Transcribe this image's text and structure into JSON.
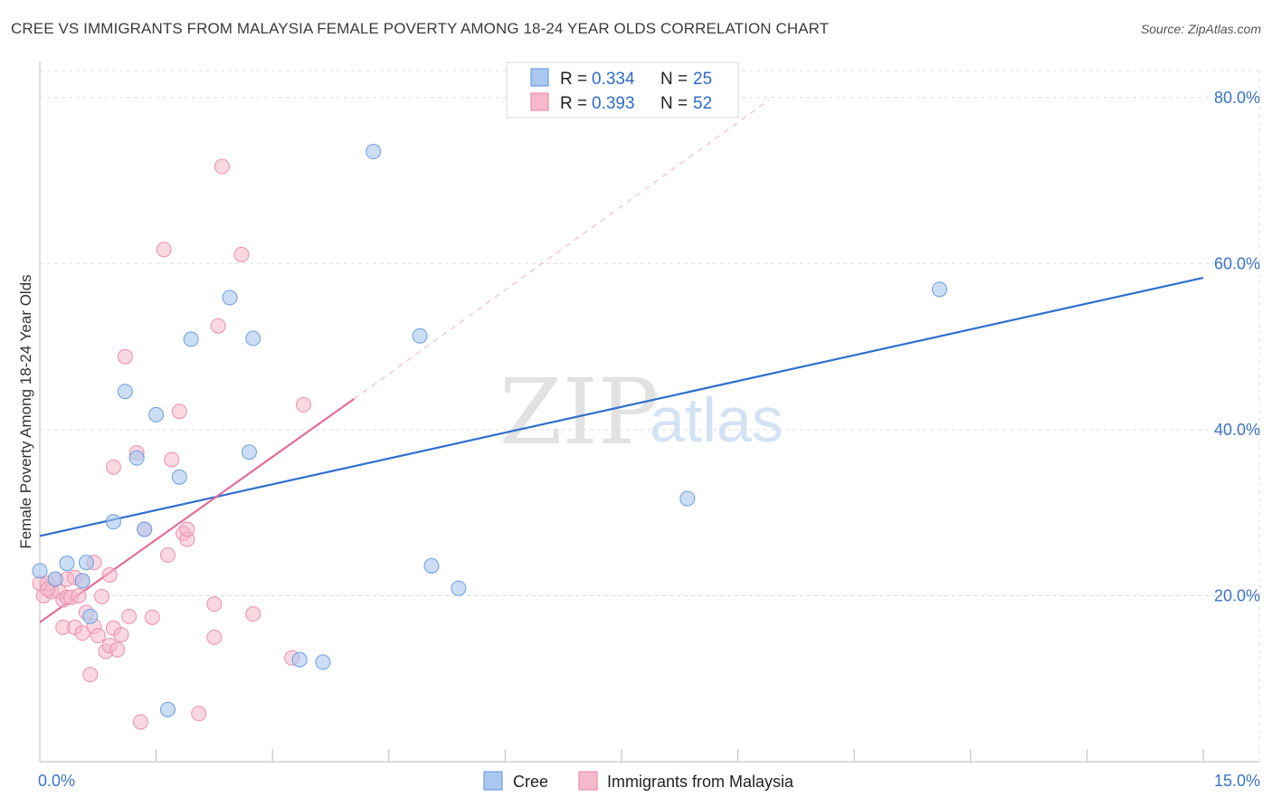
{
  "title": "CREE VS IMMIGRANTS FROM MALAYSIA FEMALE POVERTY AMONG 18-24 YEAR OLDS CORRELATION CHART",
  "source": "Source: ZipAtlas.com",
  "watermark": {
    "zip": "ZIP",
    "atlas": "atlas"
  },
  "colors": {
    "cree_fill": "#a9c8f0",
    "cree_stroke": "#6d9ee0",
    "cree_line": "#2f6fce",
    "malaysia_fill": "#f6b8cb",
    "malaysia_stroke": "#ec8fae",
    "malaysia_line": "#e46a96",
    "axis_label": "#3a74c7",
    "grid": "#dddddd"
  },
  "legend": {
    "r_label": "R =",
    "n_label": "N =",
    "cree": {
      "r": "0.334",
      "n": "25"
    },
    "malaysia": {
      "r": "0.393",
      "n": "52"
    }
  },
  "bottom_legend": {
    "cree": "Cree",
    "malaysia": "Immigrants from Malaysia"
  },
  "chart_data": {
    "type": "scatter",
    "title": "CREE VS IMMIGRANTS FROM MALAYSIA FEMALE POVERTY AMONG 18-24 YEAR OLDS CORRELATION CHART",
    "xlabel": "",
    "ylabel": "Female Poverty Among 18-24 Year Olds",
    "xlim": [
      0,
      15
    ],
    "ylim": [
      0,
      85
    ],
    "x_tick_labels": [
      "0.0%",
      "15.0%"
    ],
    "y_ticks": [
      20,
      40,
      60,
      80
    ],
    "y_tick_labels": [
      "20.0%",
      "40.0%",
      "60.0%",
      "80.0%"
    ],
    "grid": true,
    "series": [
      {
        "name": "Cree",
        "points": [
          [
            0.0,
            23.0
          ],
          [
            0.2,
            22.0
          ],
          [
            0.35,
            23.9
          ],
          [
            0.55,
            21.8
          ],
          [
            0.6,
            24.0
          ],
          [
            0.65,
            17.5
          ],
          [
            0.95,
            28.9
          ],
          [
            1.1,
            44.6
          ],
          [
            1.25,
            36.6
          ],
          [
            1.35,
            28.0
          ],
          [
            1.5,
            41.8
          ],
          [
            1.65,
            6.3
          ],
          [
            1.8,
            34.3
          ],
          [
            1.95,
            50.9
          ],
          [
            2.45,
            55.9
          ],
          [
            2.7,
            37.3
          ],
          [
            2.75,
            51.0
          ],
          [
            3.35,
            12.3
          ],
          [
            3.65,
            12.0
          ],
          [
            4.3,
            73.5
          ],
          [
            4.9,
            51.3
          ],
          [
            5.05,
            23.6
          ],
          [
            5.4,
            20.9
          ],
          [
            8.35,
            31.7
          ],
          [
            11.6,
            56.9
          ]
        ],
        "trend": {
          "x": [
            0,
            15
          ],
          "y": [
            27.2,
            58.3
          ]
        }
      },
      {
        "name": "Immigrants from Malaysia",
        "points": [
          [
            0.05,
            20.0
          ],
          [
            0.1,
            21.5
          ],
          [
            0.15,
            20.5
          ],
          [
            0.2,
            22.0
          ],
          [
            0.25,
            20.5
          ],
          [
            0.3,
            19.5
          ],
          [
            0.3,
            16.2
          ],
          [
            0.35,
            22.0
          ],
          [
            0.35,
            19.8
          ],
          [
            0.4,
            19.8
          ],
          [
            0.45,
            22.2
          ],
          [
            0.45,
            16.2
          ],
          [
            0.5,
            20.0
          ],
          [
            0.55,
            15.5
          ],
          [
            0.55,
            21.8
          ],
          [
            0.6,
            18.0
          ],
          [
            0.65,
            10.5
          ],
          [
            0.7,
            24.0
          ],
          [
            0.7,
            16.3
          ],
          [
            0.75,
            15.2
          ],
          [
            0.8,
            19.9
          ],
          [
            0.85,
            13.3
          ],
          [
            0.9,
            22.5
          ],
          [
            0.9,
            14.0
          ],
          [
            0.95,
            16.1
          ],
          [
            0.95,
            35.5
          ],
          [
            1.0,
            13.5
          ],
          [
            1.05,
            15.3
          ],
          [
            1.1,
            48.8
          ],
          [
            1.15,
            17.5
          ],
          [
            1.25,
            37.2
          ],
          [
            1.3,
            4.8
          ],
          [
            1.35,
            28.0
          ],
          [
            1.45,
            17.4
          ],
          [
            1.6,
            61.7
          ],
          [
            1.65,
            24.9
          ],
          [
            1.7,
            36.4
          ],
          [
            1.8,
            42.2
          ],
          [
            1.85,
            27.5
          ],
          [
            1.9,
            26.8
          ],
          [
            1.9,
            28.0
          ],
          [
            2.05,
            5.8
          ],
          [
            2.25,
            19.0
          ],
          [
            2.25,
            15.0
          ],
          [
            2.3,
            52.5
          ],
          [
            2.35,
            71.7
          ],
          [
            2.6,
            61.1
          ],
          [
            2.75,
            17.8
          ],
          [
            3.25,
            12.5
          ],
          [
            3.4,
            43.0
          ],
          [
            0.0,
            21.5
          ],
          [
            0.1,
            20.8
          ]
        ],
        "trend": {
          "x": [
            0,
            4.05
          ],
          "y": [
            16.8,
            43.7
          ]
        },
        "trend_dashed": {
          "x": [
            4.05,
            9.4
          ],
          "y": [
            43.7,
            79.7
          ]
        }
      }
    ]
  }
}
